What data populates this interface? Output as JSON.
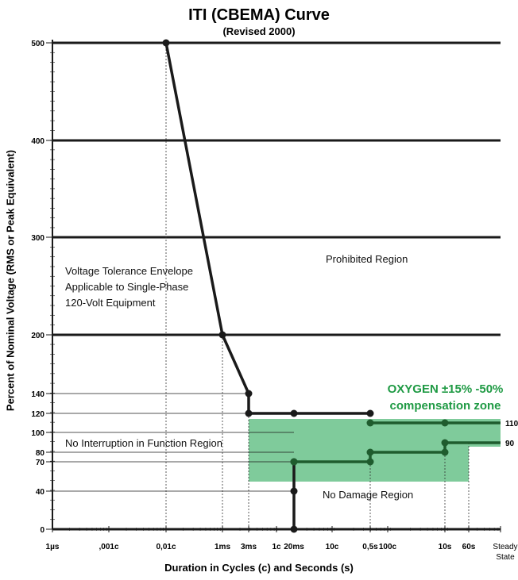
{
  "title": "ITI (CBEMA) Curve",
  "subtitle": "(Revised 2000)",
  "chart_data": {
    "type": "line",
    "xlabel": "Duration in Cycles (c) and Seconds (s)",
    "ylabel": "Percent of Nominal Voltage (RMS or Peak Equivalent)",
    "x_scale": "log",
    "y_ticks": [
      "0",
      "40",
      "70",
      "80",
      "90",
      "100",
      "110",
      "120",
      "140",
      "200",
      "300",
      "400",
      "500"
    ],
    "x_ticks": [
      {
        "label": "1µs",
        "x": "1µs"
      },
      {
        "label": ",001c",
        "x": ",001c"
      },
      {
        "label": "0,01c",
        "x": "0,01c"
      },
      {
        "label": "1ms",
        "x": "1ms"
      },
      {
        "label": "3ms",
        "x": "3ms"
      },
      {
        "label": "1c",
        "x": "1c"
      },
      {
        "label": "20ms",
        "x": "20ms"
      },
      {
        "label": "10c",
        "x": "10c"
      },
      {
        "label": "0,5s",
        "x": "0,5s"
      },
      {
        "label": "100c",
        "x": "100c"
      },
      {
        "label": "10s",
        "x": "10s"
      },
      {
        "label": "60s",
        "x": "60s"
      },
      {
        "label": "Steady State",
        "x": "Steady State"
      }
    ],
    "series": [
      {
        "style": "upper-curve",
        "color": "#1a1a1a",
        "points": [
          {
            "x": "0,01c",
            "y": 500
          },
          {
            "x": "1ms",
            "y": 200
          },
          {
            "x": "3ms",
            "y": 140
          },
          {
            "x": "3ms",
            "y": 120
          },
          {
            "x": "20ms",
            "y": 120
          },
          {
            "x": "0,5s",
            "y": 120
          }
        ]
      },
      {
        "style": "upper-curve",
        "color": "#1f5c2e",
        "points": [
          {
            "x": "0,5s",
            "y": 110
          },
          {
            "x": "10s",
            "y": 110
          },
          {
            "x": "Steady State",
            "y": 110
          }
        ]
      },
      {
        "style": "lower-curve",
        "color": "#1a1a1a",
        "points": [
          {
            "x": "20ms",
            "y": 0
          },
          {
            "x": "20ms",
            "y": 40
          },
          {
            "x": "20ms",
            "y": 70
          }
        ]
      },
      {
        "style": "lower-curve",
        "color": "#1f5c2e",
        "points": [
          {
            "x": "20ms",
            "y": 70
          },
          {
            "x": "0,5s",
            "y": 70
          },
          {
            "x": "0,5s",
            "y": 80
          },
          {
            "x": "10s",
            "y": 80
          },
          {
            "x": "10s",
            "y": 90
          },
          {
            "x": "Steady State",
            "y": 90
          }
        ]
      }
    ],
    "end_labels": [
      {
        "text": "110",
        "y": 110
      },
      {
        "text": "90",
        "y": 90
      }
    ],
    "annotations": {
      "envelope": [
        "Voltage Tolerance Envelope",
        "Applicable to Single-Phase",
        "120-Volt Equipment"
      ],
      "prohibited": "Prohibited Region",
      "no_interruption": "No Interruption in Function Region",
      "no_damage": "No Damage Region",
      "zone_line1": "OXYGEN ±15% -50%",
      "zone_line2": "compensation zone"
    },
    "colors": {
      "curve": "#1a1a1a",
      "oxygen_curve": "#1f5c2e",
      "zone_fill": "#7fcb9b",
      "zone_text": "#1f9a44"
    },
    "grid": true
  }
}
